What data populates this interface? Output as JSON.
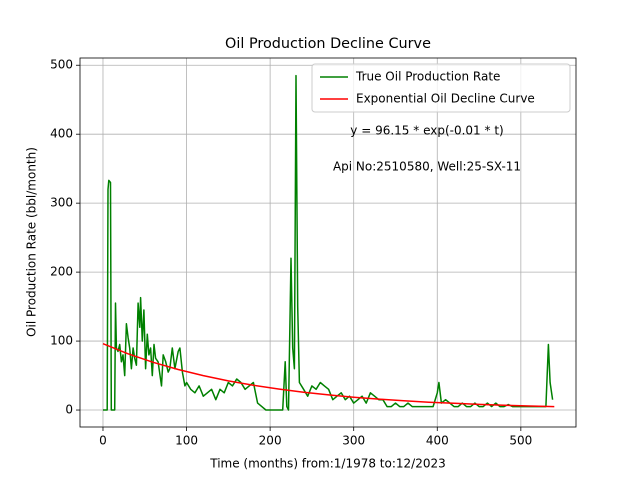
{
  "chart_data": {
    "type": "line",
    "title": "Oil Production Decline Curve",
    "xlabel": "Time (months) from:1/1978 to:12/2023",
    "ylabel": "Oil Production Rate (bbl/month)",
    "annotations": [
      "y = 96.15 * exp(-0.01 * t)",
      "Api No:2510580, Well:25-SX-11"
    ],
    "xlim": [
      -27.5,
      566
    ],
    "ylim": [
      -24.6,
      510.5
    ],
    "xticks": [
      0,
      100,
      200,
      300,
      400,
      500
    ],
    "yticks": [
      0,
      100,
      200,
      300,
      400,
      500
    ],
    "grid": true,
    "legend": "upper right",
    "series": [
      {
        "name": "True Oil Production Rate",
        "color": "#008000",
        "x": [
          0,
          5,
          6,
          7,
          9,
          10,
          12,
          14,
          15,
          16,
          18,
          20,
          22,
          24,
          26,
          28,
          30,
          32,
          34,
          36,
          38,
          40,
          42,
          44,
          45,
          47,
          49,
          51,
          53,
          55,
          57,
          59,
          61,
          63,
          66,
          70,
          72,
          75,
          78,
          80,
          83,
          86,
          90,
          92,
          95,
          98,
          100,
          105,
          110,
          115,
          120,
          125,
          130,
          135,
          140,
          145,
          150,
          155,
          160,
          165,
          170,
          175,
          180,
          185,
          190,
          195,
          200,
          210,
          215,
          218,
          220,
          222,
          225,
          227,
          229,
          231,
          233,
          235,
          240,
          245,
          250,
          255,
          260,
          265,
          270,
          275,
          280,
          285,
          290,
          295,
          300,
          305,
          310,
          315,
          320,
          325,
          330,
          335,
          340,
          345,
          350,
          355,
          360,
          365,
          370,
          375,
          380,
          385,
          390,
          395,
          400,
          402,
          405,
          410,
          415,
          420,
          425,
          430,
          435,
          440,
          445,
          450,
          455,
          460,
          465,
          470,
          475,
          480,
          485,
          490,
          495,
          500,
          505,
          510,
          515,
          520,
          525,
          530,
          533,
          535,
          538
        ],
        "values": [
          0,
          0,
          320,
          333,
          330,
          0,
          0,
          0,
          155,
          90,
          85,
          95,
          70,
          80,
          50,
          125,
          105,
          90,
          60,
          90,
          75,
          65,
          155,
          120,
          163,
          100,
          145,
          60,
          110,
          80,
          90,
          50,
          95,
          75,
          70,
          35,
          80,
          70,
          55,
          60,
          90,
          60,
          85,
          90,
          55,
          35,
          40,
          30,
          25,
          35,
          20,
          25,
          30,
          15,
          30,
          25,
          40,
          35,
          45,
          40,
          30,
          35,
          40,
          10,
          5,
          0,
          0,
          0,
          0,
          70,
          5,
          0,
          220,
          90,
          60,
          485,
          150,
          40,
          30,
          20,
          35,
          30,
          40,
          35,
          30,
          15,
          20,
          25,
          15,
          20,
          10,
          15,
          20,
          10,
          25,
          20,
          15,
          15,
          5,
          5,
          10,
          5,
          5,
          10,
          5,
          5,
          5,
          5,
          5,
          5,
          25,
          40,
          10,
          15,
          10,
          5,
          5,
          10,
          5,
          5,
          10,
          5,
          5,
          10,
          5,
          10,
          5,
          5,
          8,
          5,
          5,
          5,
          5,
          5,
          5,
          5,
          5,
          5,
          95,
          40,
          15
        ]
      },
      {
        "name": "Exponential Oil Decline Curve",
        "color": "#ff0000",
        "x": [
          0,
          30,
          60,
          90,
          120,
          150,
          180,
          210,
          240,
          270,
          300,
          330,
          360,
          390,
          420,
          450,
          480,
          510,
          540
        ],
        "values": [
          96.15,
          81.6,
          69.2,
          58.8,
          49.9,
          42.3,
          35.9,
          30.5,
          25.9,
          21.9,
          18.6,
          15.8,
          13.4,
          11.4,
          9.7,
          8.2,
          7.0,
          5.9,
          5.0
        ]
      }
    ]
  }
}
